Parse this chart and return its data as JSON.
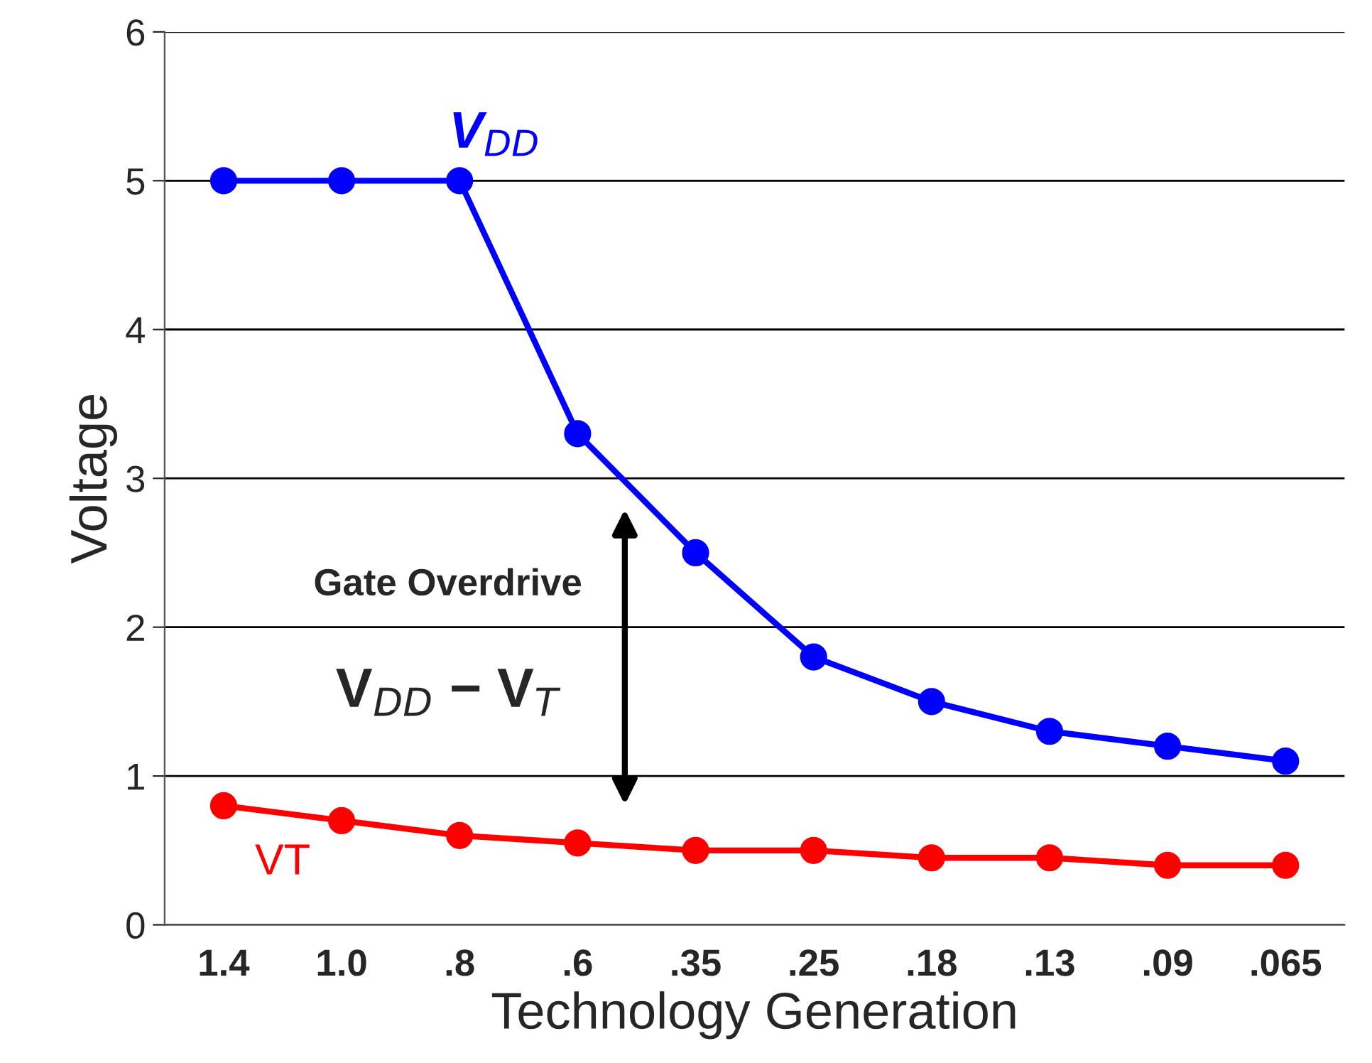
{
  "chart_data": {
    "type": "line",
    "xlabel": "Technology Generation",
    "ylabel": "Voltage",
    "categories": [
      "1.4",
      "1.0",
      ".8",
      ".6",
      ".35",
      ".25",
      ".18",
      ".13",
      ".09",
      ".065"
    ],
    "series": [
      {
        "name": "V$_{DD}$",
        "color": "#0000ff",
        "values": [
          5,
          5,
          5,
          3.3,
          2.5,
          1.8,
          1.5,
          1.3,
          1.2,
          1.1
        ]
      },
      {
        "name": "VT",
        "color": "#ff0000",
        "values": [
          0.8,
          0.7,
          0.6,
          0.55,
          0.5,
          0.5,
          0.45,
          0.45,
          0.4,
          0.4
        ]
      }
    ],
    "ylim": [
      0,
      6
    ],
    "yticks": [
      0,
      1,
      2,
      3,
      4,
      5,
      6
    ],
    "grid": "y",
    "legend": false,
    "marker": "circle",
    "line_style": "solid",
    "annotations": [
      "Gate Overdrive",
      "V$_{DD}$ − V$_{T}$"
    ]
  }
}
